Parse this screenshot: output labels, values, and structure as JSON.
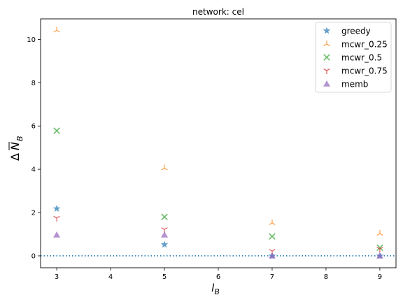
{
  "chart_data": {
    "type": "scatter",
    "title": "network: cel",
    "xlabel_main": "l",
    "xlabel_sub": "B",
    "ylabel_delta": "Δ",
    "ylabel_main": "N",
    "ylabel_sub": "B",
    "xlim": [
      2.7,
      9.3
    ],
    "ylim": [
      -0.55,
      10.95
    ],
    "xticks": [
      3,
      4,
      5,
      6,
      7,
      8,
      9
    ],
    "yticks": [
      0,
      2,
      4,
      6,
      8,
      10
    ],
    "reference_line": {
      "y": 0,
      "style": "dotted",
      "color": "#1f77b4"
    },
    "legend_position": "top-right",
    "series": [
      {
        "name": "greedy",
        "marker": "star",
        "color": "#1f77b4",
        "points": [
          [
            3,
            2.18
          ],
          [
            5,
            0.52
          ],
          [
            7,
            0.0
          ],
          [
            9,
            0.0
          ]
        ]
      },
      {
        "name": "mcwr_0.25",
        "marker": "tri-up",
        "color": "#ff7f0e",
        "points": [
          [
            3,
            10.42
          ],
          [
            5,
            4.05
          ],
          [
            7,
            1.52
          ],
          [
            9,
            1.03
          ]
        ]
      },
      {
        "name": "mcwr_0.5",
        "marker": "x",
        "color": "#2ca02c",
        "points": [
          [
            3,
            5.78
          ],
          [
            5,
            1.8
          ],
          [
            7,
            0.9
          ],
          [
            9,
            0.38
          ]
        ]
      },
      {
        "name": "mcwr_0.75",
        "marker": "tri-down",
        "color": "#d62728",
        "points": [
          [
            3,
            1.75
          ],
          [
            5,
            1.22
          ],
          [
            7,
            0.22
          ],
          [
            9,
            0.32
          ]
        ]
      },
      {
        "name": "memb",
        "marker": "triangle",
        "color": "#9467bd",
        "points": [
          [
            3,
            0.97
          ],
          [
            5,
            0.97
          ],
          [
            7,
            0.0
          ],
          [
            9,
            0.0
          ]
        ]
      }
    ]
  }
}
